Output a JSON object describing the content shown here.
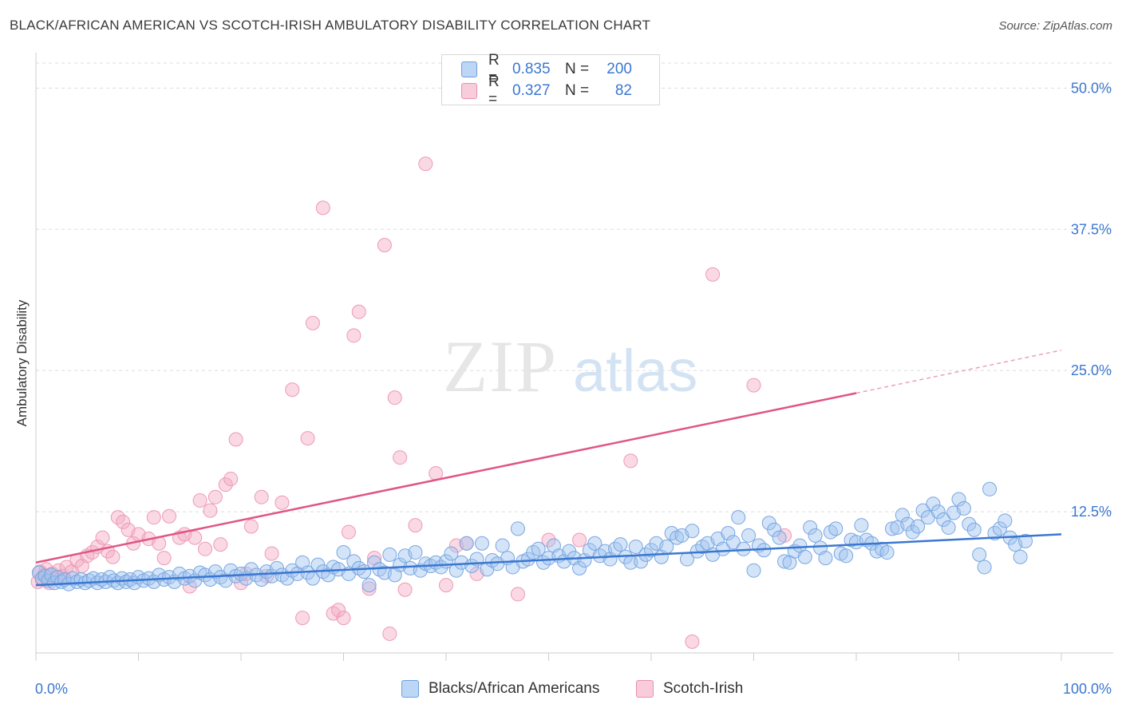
{
  "header": {
    "title": "BLACK/AFRICAN AMERICAN VS SCOTCH-IRISH AMBULATORY DISABILITY CORRELATION CHART",
    "source": "Source: ZipAtlas.com"
  },
  "watermark": {
    "part1": "ZIP",
    "part2": "atlas"
  },
  "legend": {
    "rows": [
      {
        "r_label": "R =",
        "r_value": "0.835",
        "n_label": "N =",
        "n_value": "200",
        "color": "#a8c8f0"
      },
      {
        "r_label": "R =",
        "r_value": "0.327",
        "n_label": "N =",
        "n_value": "82",
        "color": "#f5b8cc"
      }
    ]
  },
  "chart_data": {
    "type": "scatter",
    "title": "BLACK/AFRICAN AMERICAN VS SCOTCH-IRISH AMBULATORY DISABILITY CORRELATION CHART",
    "xlabel": "",
    "ylabel": "Ambulatory Disability",
    "xlim": [
      0,
      100
    ],
    "ylim": [
      0,
      52.5
    ],
    "x_tick_labels": [
      "0.0%",
      "100.0%"
    ],
    "y_ticks": [
      12.5,
      25.0,
      37.5,
      50.0
    ],
    "y_tick_labels": [
      "12.5%",
      "25.0%",
      "37.5%",
      "50.0%"
    ],
    "grid": "horizontal dashed",
    "legend_position": "top-center",
    "colors": {
      "blue": "#3b77d0",
      "blue_fill": "#a8c8f0",
      "pink": "#e05585",
      "pink_fill": "#f5b8cc"
    },
    "series": [
      {
        "name": "Blacks/African Americans",
        "trend": {
          "x": [
            0,
            100
          ],
          "y": [
            6.0,
            10.5
          ]
        },
        "points": [
          [
            0.3,
            7.1
          ],
          [
            0.6,
            6.6
          ],
          [
            0.9,
            6.8
          ],
          [
            1.2,
            6.4
          ],
          [
            1.5,
            6.9
          ],
          [
            1.8,
            6.2
          ],
          [
            2.1,
            6.7
          ],
          [
            2.5,
            6.3
          ],
          [
            2.8,
            6.5
          ],
          [
            3.2,
            6.1
          ],
          [
            3.6,
            6.6
          ],
          [
            4.0,
            6.3
          ],
          [
            4.4,
            6.5
          ],
          [
            4.8,
            6.2
          ],
          [
            5.2,
            6.4
          ],
          [
            5.6,
            6.6
          ],
          [
            6.0,
            6.2
          ],
          [
            6.4,
            6.5
          ],
          [
            6.8,
            6.3
          ],
          [
            7.2,
            6.7
          ],
          [
            7.6,
            6.4
          ],
          [
            8.0,
            6.2
          ],
          [
            8.4,
            6.6
          ],
          [
            8.8,
            6.3
          ],
          [
            9.2,
            6.5
          ],
          [
            9.6,
            6.2
          ],
          [
            10.0,
            6.7
          ],
          [
            10.5,
            6.4
          ],
          [
            11.0,
            6.6
          ],
          [
            11.5,
            6.3
          ],
          [
            12.0,
            6.9
          ],
          [
            12.5,
            6.5
          ],
          [
            13.0,
            6.7
          ],
          [
            13.5,
            6.3
          ],
          [
            14.0,
            7.0
          ],
          [
            14.5,
            6.6
          ],
          [
            15.0,
            6.8
          ],
          [
            15.5,
            6.4
          ],
          [
            16.0,
            7.1
          ],
          [
            16.5,
            6.9
          ],
          [
            17.0,
            6.5
          ],
          [
            17.5,
            7.2
          ],
          [
            18.0,
            6.7
          ],
          [
            18.5,
            6.4
          ],
          [
            19.0,
            7.3
          ],
          [
            19.5,
            6.8
          ],
          [
            20.0,
            7.0
          ],
          [
            20.5,
            6.6
          ],
          [
            21.0,
            7.4
          ],
          [
            21.5,
            6.9
          ],
          [
            22.0,
            6.5
          ],
          [
            22.5,
            7.2
          ],
          [
            23.0,
            6.8
          ],
          [
            23.5,
            7.5
          ],
          [
            24.0,
            6.9
          ],
          [
            24.5,
            6.6
          ],
          [
            25.0,
            7.3
          ],
          [
            25.5,
            7.0
          ],
          [
            26.0,
            8.0
          ],
          [
            26.5,
            7.1
          ],
          [
            27.0,
            6.6
          ],
          [
            27.5,
            7.8
          ],
          [
            28.0,
            7.2
          ],
          [
            28.5,
            6.9
          ],
          [
            29.0,
            7.6
          ],
          [
            29.5,
            7.4
          ],
          [
            30.0,
            8.9
          ],
          [
            30.5,
            7.0
          ],
          [
            31.0,
            8.1
          ],
          [
            31.5,
            7.5
          ],
          [
            32.0,
            7.2
          ],
          [
            32.5,
            6.0
          ],
          [
            33.0,
            8.0
          ],
          [
            33.5,
            7.4
          ],
          [
            34.0,
            7.1
          ],
          [
            34.5,
            8.7
          ],
          [
            35.0,
            6.9
          ],
          [
            35.5,
            7.8
          ],
          [
            36.0,
            8.6
          ],
          [
            36.5,
            7.5
          ],
          [
            37.0,
            8.9
          ],
          [
            37.5,
            7.3
          ],
          [
            38.0,
            7.9
          ],
          [
            38.5,
            7.7
          ],
          [
            39.0,
            8.0
          ],
          [
            39.5,
            7.6
          ],
          [
            40.0,
            8.1
          ],
          [
            40.5,
            8.8
          ],
          [
            41.0,
            7.3
          ],
          [
            41.5,
            8.0
          ],
          [
            42.0,
            9.7
          ],
          [
            42.5,
            7.7
          ],
          [
            43.0,
            8.3
          ],
          [
            43.5,
            9.7
          ],
          [
            44.0,
            7.4
          ],
          [
            44.5,
            8.2
          ],
          [
            45.0,
            7.9
          ],
          [
            45.5,
            9.5
          ],
          [
            46.0,
            8.4
          ],
          [
            46.5,
            7.6
          ],
          [
            47.0,
            11.0
          ],
          [
            47.5,
            8.1
          ],
          [
            48.0,
            8.3
          ],
          [
            48.5,
            8.9
          ],
          [
            49.0,
            9.2
          ],
          [
            49.5,
            8.0
          ],
          [
            50.0,
            8.4
          ],
          [
            50.5,
            9.5
          ],
          [
            51.0,
            8.6
          ],
          [
            51.5,
            8.1
          ],
          [
            52.0,
            9.0
          ],
          [
            52.5,
            8.4
          ],
          [
            53.0,
            7.5
          ],
          [
            53.5,
            8.2
          ],
          [
            54.0,
            9.1
          ],
          [
            54.5,
            9.7
          ],
          [
            55.0,
            8.6
          ],
          [
            55.5,
            9.0
          ],
          [
            56.0,
            8.3
          ],
          [
            56.5,
            9.2
          ],
          [
            57.0,
            9.6
          ],
          [
            57.5,
            8.5
          ],
          [
            58.0,
            8.0
          ],
          [
            58.5,
            9.4
          ],
          [
            59.0,
            8.1
          ],
          [
            59.5,
            8.7
          ],
          [
            60.0,
            9.1
          ],
          [
            60.5,
            9.7
          ],
          [
            61.0,
            8.5
          ],
          [
            61.5,
            9.4
          ],
          [
            62.0,
            10.6
          ],
          [
            62.5,
            10.2
          ],
          [
            63.0,
            10.4
          ],
          [
            63.5,
            8.3
          ],
          [
            64.0,
            10.8
          ],
          [
            64.5,
            9.0
          ],
          [
            65.0,
            9.4
          ],
          [
            65.5,
            9.7
          ],
          [
            66.0,
            8.7
          ],
          [
            66.5,
            10.1
          ],
          [
            67.0,
            9.2
          ],
          [
            67.5,
            10.6
          ],
          [
            68.0,
            9.8
          ],
          [
            68.5,
            12.0
          ],
          [
            69.0,
            9.2
          ],
          [
            69.5,
            10.4
          ],
          [
            70.0,
            7.3
          ],
          [
            70.5,
            9.5
          ],
          [
            71.0,
            9.1
          ],
          [
            71.5,
            11.5
          ],
          [
            72.0,
            10.9
          ],
          [
            72.5,
            10.2
          ],
          [
            73.0,
            8.1
          ],
          [
            73.5,
            8.0
          ],
          [
            74.0,
            9.0
          ],
          [
            74.5,
            9.5
          ],
          [
            75.0,
            8.5
          ],
          [
            75.5,
            11.1
          ],
          [
            76.0,
            10.4
          ],
          [
            76.5,
            9.3
          ],
          [
            77.0,
            8.4
          ],
          [
            77.5,
            10.7
          ],
          [
            78.0,
            11.0
          ],
          [
            78.5,
            8.8
          ],
          [
            79.0,
            8.6
          ],
          [
            79.5,
            10.0
          ],
          [
            80.0,
            9.8
          ],
          [
            80.5,
            11.3
          ],
          [
            81.0,
            10.0
          ],
          [
            81.5,
            9.7
          ],
          [
            82.0,
            9.0
          ],
          [
            82.5,
            9.2
          ],
          [
            83.0,
            8.9
          ],
          [
            83.5,
            11.0
          ],
          [
            84.0,
            11.1
          ],
          [
            84.5,
            12.2
          ],
          [
            85.0,
            11.4
          ],
          [
            85.5,
            10.7
          ],
          [
            86.0,
            11.2
          ],
          [
            86.5,
            12.6
          ],
          [
            87.0,
            12.0
          ],
          [
            87.5,
            13.2
          ],
          [
            88.0,
            12.5
          ],
          [
            88.5,
            11.8
          ],
          [
            89.0,
            11.1
          ],
          [
            89.5,
            12.4
          ],
          [
            90.0,
            13.6
          ],
          [
            90.5,
            12.8
          ],
          [
            91.0,
            11.4
          ],
          [
            91.5,
            10.9
          ],
          [
            92.0,
            8.7
          ],
          [
            92.5,
            7.6
          ],
          [
            93.0,
            14.5
          ],
          [
            93.5,
            10.6
          ],
          [
            94.0,
            11.0
          ],
          [
            94.5,
            11.7
          ],
          [
            95.0,
            10.2
          ],
          [
            95.5,
            9.6
          ],
          [
            96.0,
            8.5
          ],
          [
            96.5,
            9.9
          ]
        ]
      },
      {
        "name": "Scotch-Irish",
        "trend": {
          "x": [
            0,
            80
          ],
          "y": [
            8.0,
            23.0
          ]
        },
        "trend_extrapolated": {
          "x": [
            80,
            100
          ],
          "y": [
            23.0,
            26.8
          ]
        },
        "points": [
          [
            0.2,
            6.3
          ],
          [
            0.4,
            7.2
          ],
          [
            0.6,
            6.5
          ],
          [
            0.8,
            6.9
          ],
          [
            1.0,
            7.4
          ],
          [
            1.3,
            6.2
          ],
          [
            1.6,
            7.0
          ],
          [
            1.9,
            6.6
          ],
          [
            2.2,
            7.3
          ],
          [
            2.6,
            6.8
          ],
          [
            3.0,
            7.6
          ],
          [
            3.5,
            7.2
          ],
          [
            4.0,
            8.2
          ],
          [
            4.5,
            7.7
          ],
          [
            5.0,
            8.6
          ],
          [
            5.5,
            8.9
          ],
          [
            6.0,
            9.4
          ],
          [
            6.5,
            10.2
          ],
          [
            7.0,
            9.0
          ],
          [
            7.5,
            8.5
          ],
          [
            8.0,
            12.0
          ],
          [
            8.5,
            11.6
          ],
          [
            9.0,
            10.9
          ],
          [
            9.5,
            9.7
          ],
          [
            10.0,
            10.5
          ],
          [
            11.0,
            10.1
          ],
          [
            11.5,
            12.0
          ],
          [
            12.0,
            9.7
          ],
          [
            12.5,
            8.4
          ],
          [
            13.0,
            12.1
          ],
          [
            14.0,
            10.2
          ],
          [
            14.5,
            10.5
          ],
          [
            15.0,
            5.9
          ],
          [
            15.5,
            10.2
          ],
          [
            16.0,
            13.5
          ],
          [
            16.5,
            9.2
          ],
          [
            17.0,
            12.6
          ],
          [
            17.5,
            13.8
          ],
          [
            18.0,
            9.6
          ],
          [
            18.5,
            14.9
          ],
          [
            19.0,
            15.4
          ],
          [
            19.5,
            18.9
          ],
          [
            20.0,
            6.2
          ],
          [
            20.5,
            7.0
          ],
          [
            21.0,
            11.2
          ],
          [
            22.0,
            13.8
          ],
          [
            22.5,
            6.8
          ],
          [
            23.0,
            8.8
          ],
          [
            24.0,
            13.3
          ],
          [
            25.0,
            23.3
          ],
          [
            26.0,
            3.1
          ],
          [
            26.5,
            19.0
          ],
          [
            27.0,
            29.2
          ],
          [
            28.0,
            39.4
          ],
          [
            29.0,
            3.5
          ],
          [
            29.5,
            3.8
          ],
          [
            30.0,
            3.1
          ],
          [
            30.5,
            10.7
          ],
          [
            31.0,
            28.1
          ],
          [
            31.5,
            30.2
          ],
          [
            32.5,
            5.7
          ],
          [
            33.0,
            8.4
          ],
          [
            34.0,
            36.1
          ],
          [
            34.5,
            1.7
          ],
          [
            35.0,
            22.6
          ],
          [
            35.5,
            17.3
          ],
          [
            36.0,
            5.6
          ],
          [
            37.0,
            11.3
          ],
          [
            38.0,
            43.3
          ],
          [
            39.0,
            15.9
          ],
          [
            40.0,
            6.0
          ],
          [
            41.0,
            9.5
          ],
          [
            42.0,
            9.7
          ],
          [
            43.0,
            7.0
          ],
          [
            47.0,
            5.2
          ],
          [
            50.0,
            10.0
          ],
          [
            53.0,
            10.0
          ],
          [
            58.0,
            17.0
          ],
          [
            64.0,
            1.0
          ],
          [
            66.0,
            33.5
          ],
          [
            70.0,
            23.7
          ],
          [
            73.0,
            10.4
          ]
        ]
      }
    ]
  }
}
